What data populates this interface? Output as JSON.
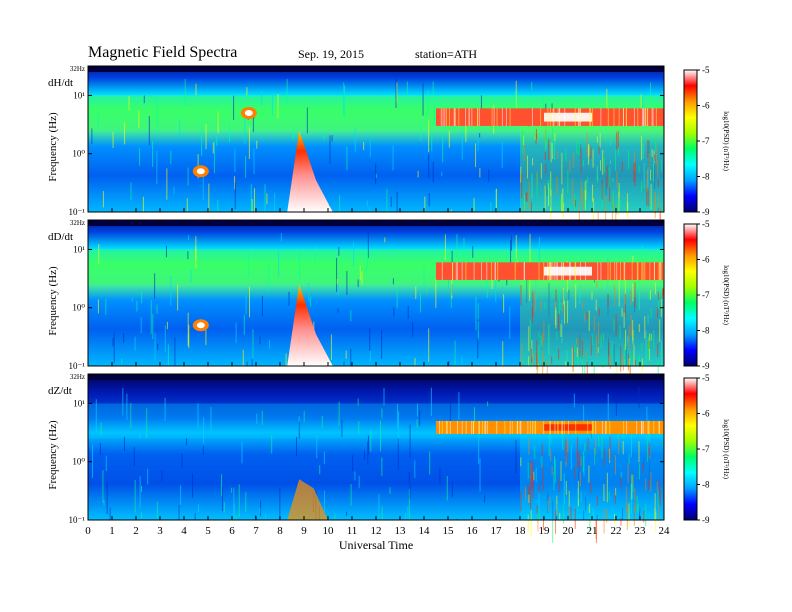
{
  "header": {
    "title": "Magnetic Field Spectra",
    "date": "Sep. 19, 2015",
    "station": "station=ATH"
  },
  "chart_data": {
    "type": "heatmap",
    "xlabel": "Universal Time",
    "xlim": [
      0,
      24
    ],
    "x_ticks": [
      "0",
      "1",
      "2",
      "3",
      "4",
      "5",
      "6",
      "7",
      "8",
      "9",
      "10",
      "11",
      "12",
      "13",
      "14",
      "15",
      "16",
      "17",
      "18",
      "19",
      "20",
      "21",
      "22",
      "23",
      "24"
    ],
    "y_scale": "log",
    "colorbar": {
      "label": "log10(PSD) (nT²/Hz)",
      "ticks": [
        "-5",
        "-6",
        "-7",
        "-8",
        "-9"
      ],
      "range": [
        -9,
        -5
      ],
      "colors": [
        "#000070",
        "#0000ff",
        "#00a0ff",
        "#00ffff",
        "#00ff66",
        "#a0ff00",
        "#ffff00",
        "#ff9900",
        "#ff0000",
        "#ffffff"
      ]
    },
    "panels": [
      {
        "component": "dH/dt",
        "ylabel": "Frequency (Hz)",
        "y_tick_labels": [
          "32Hz",
          "10¹",
          "10⁰",
          "10⁻¹"
        ],
        "features": [
          {
            "label": "band 3–6 Hz, 14.5–24 UT",
            "level": -5.6
          },
          {
            "label": "burst 8.3–10.2 UT",
            "level": -5.2
          },
          {
            "label": "patch 4.7 UT",
            "level": -6.0
          },
          {
            "label": "patch 6.7 UT",
            "level": -6.2
          }
        ]
      },
      {
        "component": "dD/dt",
        "ylabel": "Frequency (Hz)",
        "y_tick_labels": [
          "32Hz",
          "10¹",
          "10⁰",
          "10⁻¹"
        ],
        "features": [
          {
            "label": "band 3–6 Hz, 14.5–24 UT",
            "level": -5.5
          },
          {
            "label": "burst 8.3–10.2 UT",
            "level": -5.2
          },
          {
            "label": "patch 4.7 UT",
            "level": -6.0
          }
        ]
      },
      {
        "component": "dZ/dt",
        "ylabel": "Frequency (Hz)",
        "y_tick_labels": [
          "32Hz",
          "10¹",
          "10⁰",
          "10⁻¹"
        ],
        "features": [
          {
            "label": "band 3–5 Hz, 14.5–24 UT",
            "level": -6.2
          },
          {
            "label": "burst 8.3–10 UT",
            "level": -6.5
          }
        ]
      }
    ]
  }
}
